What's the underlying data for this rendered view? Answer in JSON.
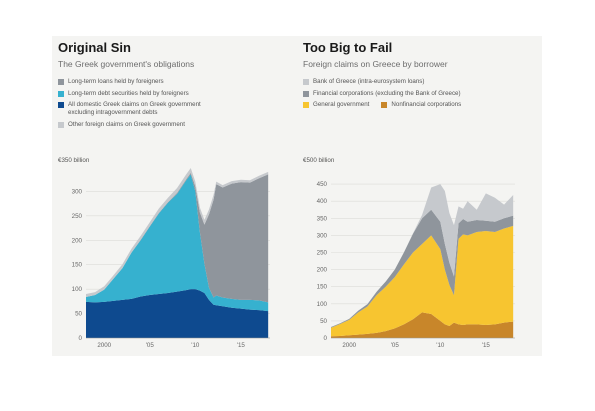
{
  "chart_data": [
    {
      "type": "area",
      "title": "Original Sin",
      "subtitle": "The Greek government's obligations",
      "unit_label": "€350 billion",
      "ylim": [
        0,
        350
      ],
      "yticks": [
        0,
        50,
        100,
        150,
        200,
        250,
        300
      ],
      "ytick_labels": [
        "0",
        "50",
        "100",
        "150",
        "200",
        "250",
        "300"
      ],
      "xlim": [
        1998,
        2018.2
      ],
      "xticks": [
        2000,
        2005,
        2010,
        2015
      ],
      "xtick_labels": [
        "2000",
        "'05",
        "'10",
        "'15"
      ],
      "x": [
        1998,
        1999,
        2000,
        2001,
        2002,
        2003,
        2004,
        2005,
        2006,
        2007,
        2008,
        2009,
        2009.5,
        2010,
        2010.5,
        2011,
        2011.5,
        2012,
        2012.3,
        2013,
        2014,
        2015,
        2016,
        2017,
        2018
      ],
      "series": [
        {
          "name": "All domestic Greek claims on Greek government excluding intragovernment debts",
          "color": "#0e4a8f",
          "values": [
            74,
            73,
            74,
            76,
            78,
            80,
            85,
            88,
            90,
            92,
            95,
            98,
            100,
            100,
            97,
            92,
            78,
            68,
            67,
            65,
            62,
            60,
            58,
            57,
            55
          ]
        },
        {
          "name": "Long-term debt securities held by foreigners",
          "color": "#36b1cf",
          "values": [
            10,
            15,
            25,
            45,
            65,
            95,
            115,
            140,
            165,
            185,
            200,
            225,
            235,
            200,
            120,
            60,
            25,
            15,
            20,
            18,
            18,
            18,
            20,
            20,
            18
          ]
        },
        {
          "name": "Long-term loans held by foreigners",
          "color": "#8f959c",
          "values": [
            0,
            0,
            0,
            0,
            0,
            0,
            1,
            1,
            1,
            1,
            2,
            2,
            3,
            10,
            40,
            80,
            150,
            200,
            228,
            225,
            236,
            241,
            240,
            250,
            262
          ]
        },
        {
          "name": "Other foreign claims on Greek government",
          "color": "#c6c9cd",
          "values": [
            6,
            6,
            7,
            7,
            8,
            8,
            8,
            8,
            9,
            9,
            10,
            10,
            10,
            10,
            10,
            10,
            10,
            10,
            5,
            5,
            5,
            5,
            5,
            5,
            5
          ]
        }
      ]
    },
    {
      "type": "area",
      "title": "Too Big to Fail",
      "subtitle": "Foreign claims on Greece by borrower",
      "unit_label": "€500 billion",
      "ylim": [
        0,
        500
      ],
      "yticks": [
        0,
        50,
        100,
        150,
        200,
        250,
        300,
        350,
        400,
        450
      ],
      "ytick_labels": [
        "0",
        "50",
        "100",
        "150",
        "200",
        "250",
        "300",
        "350",
        "400",
        "450"
      ],
      "xlim": [
        1998,
        2018.2
      ],
      "xticks": [
        2000,
        2005,
        2010,
        2015
      ],
      "xtick_labels": [
        "2000",
        "'05",
        "'10",
        "'15"
      ],
      "x": [
        1998,
        1999,
        2000,
        2001,
        2002,
        2003,
        2004,
        2005,
        2006,
        2007,
        2008,
        2009,
        2010,
        2010.5,
        2011,
        2011.5,
        2012,
        2012.5,
        2013,
        2014,
        2015,
        2016,
        2017,
        2018
      ],
      "series": [
        {
          "name": "Nonfinancial corporations",
          "color": "#c8862a",
          "values": [
            5,
            6,
            8,
            10,
            12,
            15,
            20,
            28,
            40,
            55,
            75,
            70,
            50,
            40,
            35,
            45,
            40,
            38,
            40,
            40,
            38,
            40,
            45,
            48
          ]
        },
        {
          "name": "General government",
          "color": "#f7c530",
          "values": [
            25,
            35,
            45,
            65,
            80,
            110,
            130,
            150,
            175,
            195,
            200,
            230,
            210,
            160,
            120,
            80,
            250,
            265,
            260,
            270,
            275,
            270,
            275,
            280
          ]
        },
        {
          "name": "Financial corporations (excluding the Bank of Greece)",
          "color": "#8f959c",
          "values": [
            2,
            2,
            3,
            5,
            7,
            10,
            15,
            22,
            35,
            55,
            75,
            75,
            80,
            75,
            65,
            55,
            45,
            45,
            40,
            35,
            30,
            30,
            30,
            30
          ]
        },
        {
          "name": "Bank of Greece (intra-eurosystem loans)",
          "color": "#c6c9cd",
          "values": [
            0,
            0,
            0,
            0,
            0,
            0,
            0,
            0,
            0,
            1,
            10,
            65,
            110,
            155,
            145,
            150,
            50,
            30,
            60,
            30,
            80,
            70,
            40,
            60
          ]
        }
      ]
    }
  ]
}
